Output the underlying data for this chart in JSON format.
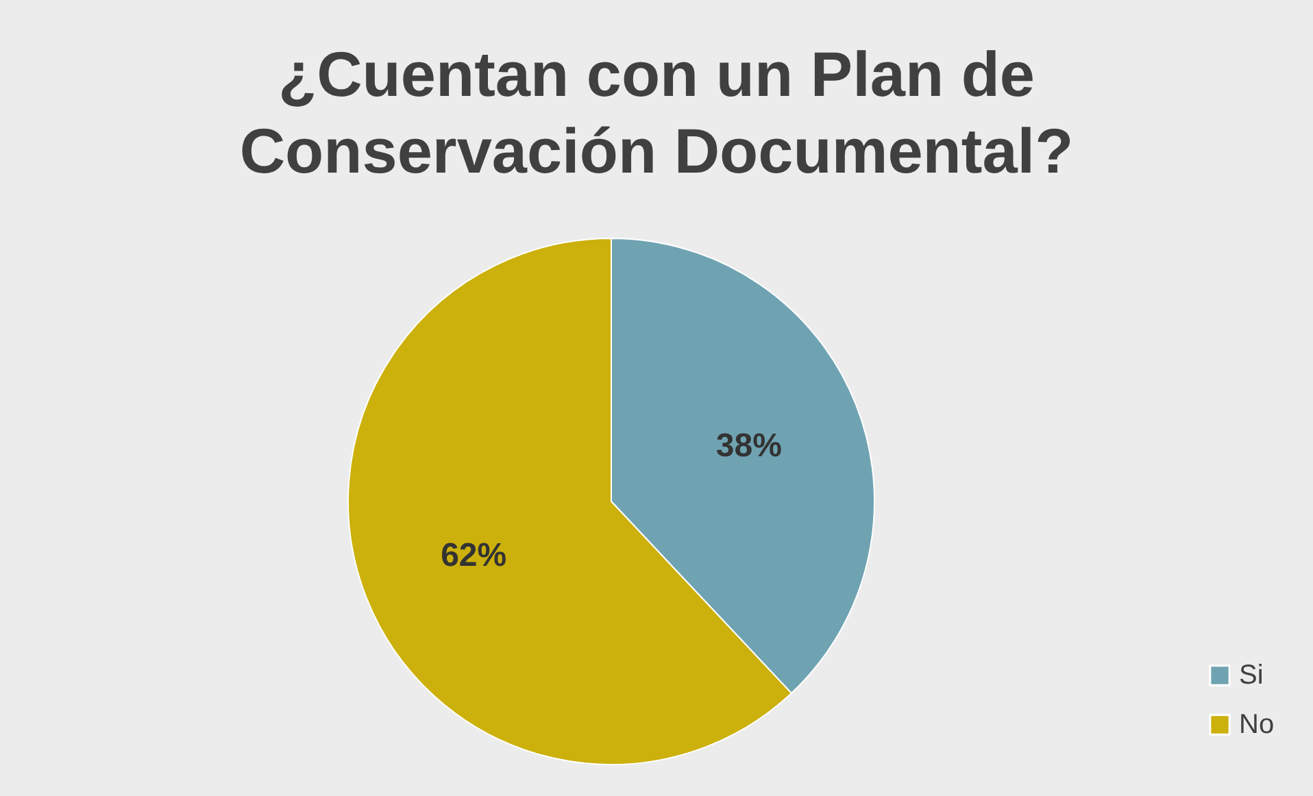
{
  "chart_data": {
    "type": "pie",
    "title": "¿Cuentan con un Plan de Conservación Documental?",
    "categories": [
      "Si",
      "No"
    ],
    "values": [
      38,
      62
    ],
    "colors": [
      "#6fa3b2",
      "#ccb00c"
    ],
    "value_labels": [
      "38%",
      "62%"
    ],
    "legend": "right"
  }
}
